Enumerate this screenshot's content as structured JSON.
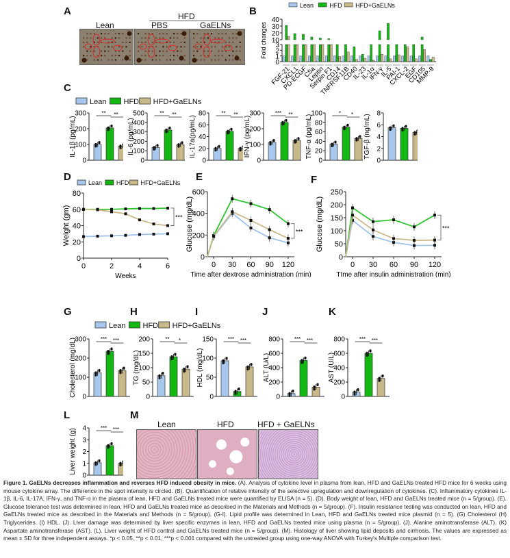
{
  "colors": {
    "lean": "#a7c7ec",
    "hfd": "#13b813",
    "gaelns": "#c8b98a",
    "lean_line": "#9ec3ec",
    "hfd_line": "#2fc42f",
    "gaelns_line": "#c9b88c"
  },
  "legend": [
    "Lean",
    "HFD",
    "HFD+GaELNs"
  ],
  "panelA": {
    "label": "A",
    "group_label": "HFD",
    "columns": [
      "Lean",
      "PBS",
      "GaELNs"
    ]
  },
  "panelM": {
    "label": "M",
    "columns": [
      "Lean",
      "HFD",
      "HFD + GaELNs"
    ]
  },
  "caption": {
    "title": "Figure 1. GaELNs decreases inflammation and reverses HFD induced obesity in mice.",
    "body": " (A). Analysis of cytokine level in plasma from lean, HFD and GaELNs treated HFD mice for 6 weeks using mouse cytokine array. The difference in the spot intensity is circled. (B). Quantification of relative intensity of the selective upregulation and downregulation of cytokines. (C). Inflammatory cytokines IL-1β, IL-6, IL-17A, IFN-γ, and TNF-α in the plasma of lean, HFD and GaELNs treated mice were quantified by ELISA (n = 5). (D). Body weight of lean, HFD and GaELNs treated mice (n = 5/group). (E). Glucose tolerance test was determined in lean, HFD and GaELNs treated mice as described in the Materials and Methods (n = 5/group). (F). Insulin resistance testing was conducted on lean, HFD and GaELNs treated mice as described in the Materials and Methods (n = 5/group). (G-I). Lipid profile was determined in Lean, HFD and GaELNs treated mice plasmid (n = 5). (G) Cholesterol (H) Triglycerides. (I) HDL. (J). Liver damage was determined by liver specific enzymes in lean, HFD and GaELNs treated mice using plasma (n = 5/group). (J). Alanine aminotransferase (ALT). (K) Aspartate aminotransferase (AST). (L). Liver weight of HFD control and GaELNs treated mice (n = 5/group). (M). Histology of liver showing lipid deposits and cirrhosis. The values are expressed as mean ± SD for three independent assays. *p < 0.05, **p < 0.01, ***p < 0.001 compared with the untreated group using one-way ANOVA with Turkey's Multiple comparison test."
  },
  "chart_data": [
    {
      "id": "B",
      "type": "bar",
      "label": "B",
      "ylabel": "Fold changes",
      "broken_axis": true,
      "ylim_lower": [
        0,
        3
      ],
      "ylim_upper": [
        10,
        40
      ],
      "yticks_lower": [
        0,
        1,
        2,
        3
      ],
      "yticks_upper": [
        10,
        20,
        30,
        40
      ],
      "categories": [
        "FGF-21",
        "CXCL1",
        "PD-ECGF",
        "C5a",
        "Leptin",
        "Serpin F1",
        "CD14",
        "TNFRSF11B",
        "CD40",
        "IL-23",
        "IL-1α",
        "IFN-γ",
        "IL-5",
        "PAI-1",
        "CXCL-2",
        "EGF",
        "CD105",
        "MMP-9"
      ],
      "series": [
        {
          "name": "Lean",
          "values": [
            1,
            1,
            1,
            1,
            1,
            1,
            1,
            1,
            1,
            1,
            1,
            1,
            1,
            1,
            1,
            1,
            1,
            1
          ]
        },
        {
          "name": "HFD",
          "values": [
            31,
            19,
            18,
            14,
            12.5,
            11.5,
            3.5,
            3.5,
            2.6,
            1.3,
            3.5,
            23,
            34,
            3.5,
            3.5,
            3.5,
            14,
            0.4
          ]
        },
        {
          "name": "HFD+GaELNs",
          "values": [
            15,
            3.5,
            3.5,
            3.5,
            3.5,
            3.5,
            0.9,
            1.7,
            0.4,
            0.6,
            0.25,
            1.3,
            0.5,
            1.2,
            2.6,
            0.5,
            2.1,
            0.8
          ]
        }
      ]
    },
    {
      "id": "C1",
      "type": "bar",
      "ylabel": "IL-1β (pg/mL)",
      "ylim": [
        0,
        300
      ],
      "yticks": [
        0,
        100,
        200,
        300
      ],
      "categories": [
        "Lean",
        "HFD",
        "HFD+GaELNs"
      ],
      "values": [
        100,
        205,
        90
      ],
      "sig": [
        "**",
        "**"
      ]
    },
    {
      "id": "C2",
      "type": "bar",
      "ylabel": "IL-6 (pg/mL)",
      "ylim": [
        0,
        500
      ],
      "yticks": [
        0,
        100,
        200,
        300,
        400,
        500
      ],
      "categories": [
        "Lean",
        "HFD",
        "HFD+GaELNs"
      ],
      "values": [
        135,
        320,
        165
      ],
      "sig": [
        "**",
        "**"
      ]
    },
    {
      "id": "C3",
      "type": "bar",
      "ylabel": "IL-17a(pg/mL)",
      "ylim": [
        0,
        80
      ],
      "yticks": [
        0,
        20,
        40,
        60,
        80
      ],
      "categories": [
        "Lean",
        "HFD",
        "HFD+GaELNs"
      ],
      "values": [
        20,
        49,
        20
      ],
      "sig": [
        "**",
        "**"
      ]
    },
    {
      "id": "C4",
      "type": "bar",
      "ylabel": "IFN-γ (pg/mL)",
      "ylim": [
        0,
        300
      ],
      "yticks": [
        0,
        100,
        200,
        300
      ],
      "categories": [
        "Lean",
        "HFD",
        "HFD+GaELNs"
      ],
      "values": [
        113,
        240,
        125
      ],
      "sig": [
        "***",
        "**"
      ]
    },
    {
      "id": "C5",
      "type": "bar",
      "ylabel": "TNF-α (pg/mL)",
      "ylim": [
        0,
        100
      ],
      "yticks": [
        0,
        20,
        40,
        60,
        80,
        100
      ],
      "categories": [
        "Lean",
        "HFD",
        "HFD+GaELNs"
      ],
      "values": [
        34,
        70,
        46
      ],
      "sig": [
        "*",
        "*"
      ]
    },
    {
      "id": "C6",
      "type": "bar",
      "ylabel": "TGF-β (ng/mL)",
      "ylim": [
        0,
        8
      ],
      "yticks": [
        0,
        2,
        4,
        6,
        8
      ],
      "categories": [
        "Lean",
        "HFD",
        "HFD+GaELNs"
      ],
      "values": [
        5.5,
        5.4,
        4.7
      ],
      "sig": []
    },
    {
      "id": "D",
      "type": "line",
      "label": "D",
      "xlabel": "Weeks",
      "ylabel": "Weight (gm)",
      "xlim": [
        0,
        6
      ],
      "ylim": [
        0,
        80
      ],
      "xticks": [
        0,
        2,
        4,
        6
      ],
      "yticks": [
        0,
        20,
        40,
        60,
        80
      ],
      "x": [
        0,
        1,
        2,
        3,
        4,
        5,
        6
      ],
      "series": [
        {
          "name": "Lean",
          "values": [
            26.5,
            27,
            27.5,
            28,
            29,
            29.5,
            30
          ]
        },
        {
          "name": "HFD",
          "values": [
            60,
            60,
            60,
            60.5,
            61,
            61,
            61.5
          ]
        },
        {
          "name": "HFD+GaELNs",
          "values": [
            60,
            59.5,
            57,
            54.5,
            47,
            42,
            40
          ]
        }
      ],
      "annotation": "***"
    },
    {
      "id": "E",
      "type": "line",
      "label": "E",
      "xlabel": "Time after dextrose administration (min)",
      "ylabel": "Glucose (mg/dL)",
      "ylim": [
        0,
        600
      ],
      "xticks": [
        0,
        30,
        60,
        90,
        120
      ],
      "yticks": [
        0,
        200,
        400,
        600
      ],
      "x": [
        0,
        30,
        60,
        90,
        120
      ],
      "series": [
        {
          "name": "Lean",
          "values": [
            185,
            400,
            265,
            175,
            128
          ]
        },
        {
          "name": "HFD",
          "values": [
            195,
            535,
            490,
            435,
            305
          ]
        },
        {
          "name": "HFD+GaELNs",
          "values": [
            190,
            415,
            335,
            250,
            170
          ]
        }
      ],
      "annotation": "***"
    },
    {
      "id": "F",
      "type": "line",
      "label": "F",
      "xlabel": "TIme after insulin administration (min)",
      "ylabel": "Glucose (mg/dL)",
      "ylim": [
        0,
        250
      ],
      "xticks": [
        0,
        30,
        60,
        90,
        120
      ],
      "yticks": [
        0,
        50,
        100,
        150,
        200,
        250
      ],
      "x": [
        0,
        30,
        60,
        90,
        120
      ],
      "series": [
        {
          "name": "Lean",
          "values": [
            140,
            78,
            55,
            43,
            44
          ]
        },
        {
          "name": "HFD",
          "values": [
            188,
            135,
            142,
            115,
            160
          ]
        },
        {
          "name": "HFD+GaELNs",
          "values": [
            160,
            103,
            70,
            63,
            64
          ]
        }
      ],
      "annotation": "***"
    },
    {
      "id": "G",
      "type": "bar",
      "label": "G",
      "ylabel": "Cholesterol (mg/dL)",
      "ylim": [
        0,
        300
      ],
      "yticks": [
        0,
        100,
        200,
        300
      ],
      "categories": [
        "Lean",
        "HFD",
        "HFD+GaELNs"
      ],
      "values": [
        123,
        235,
        135
      ],
      "sig": [
        "***",
        "***"
      ]
    },
    {
      "id": "H",
      "type": "bar",
      "label": "H",
      "ylabel": "TG (mg/dL)",
      "ylim": [
        0,
        200
      ],
      "yticks": [
        0,
        50,
        100,
        150,
        200
      ],
      "categories": [
        "Lean",
        "HFD",
        "HFD+GaELNs"
      ],
      "values": [
        72,
        138,
        95
      ],
      "sig": [
        "**",
        "*"
      ]
    },
    {
      "id": "I",
      "type": "bar",
      "label": "I",
      "ylabel": "HDL (mg/dL)",
      "ylim": [
        0,
        150
      ],
      "yticks": [
        0,
        50,
        100,
        150
      ],
      "categories": [
        "Lean",
        "HFD",
        "HFD+GaELNs"
      ],
      "values": [
        93,
        13,
        77
      ],
      "sig": [
        "***",
        "***"
      ]
    },
    {
      "id": "J",
      "type": "bar",
      "label": "J",
      "ylabel": "ALT (U/L)",
      "ylim": [
        0,
        800
      ],
      "yticks": [
        0,
        200,
        400,
        600,
        800
      ],
      "categories": [
        "Lean",
        "HFD",
        "HFD+GaELNs"
      ],
      "values": [
        40,
        500,
        130
      ],
      "sig": [
        "***",
        "***"
      ]
    },
    {
      "id": "K",
      "type": "bar",
      "label": "K",
      "ylabel": "AST (U/L)",
      "ylim": [
        0,
        800
      ],
      "yticks": [
        0,
        200,
        400,
        600,
        800
      ],
      "categories": [
        "Lean",
        "HFD",
        "HFD+GaELNs"
      ],
      "values": [
        60,
        600,
        250
      ],
      "sig": [
        "***",
        "***"
      ]
    },
    {
      "id": "L",
      "type": "bar",
      "label": "L",
      "ylabel": "Liver weight (g)",
      "ylim": [
        0,
        4
      ],
      "yticks": [
        0,
        1,
        2,
        3,
        4
      ],
      "categories": [
        "Lean",
        "HFD",
        "HFD+GaELNs"
      ],
      "values": [
        1.05,
        2.5,
        1.0
      ],
      "sig": [
        "***",
        "***"
      ]
    }
  ]
}
